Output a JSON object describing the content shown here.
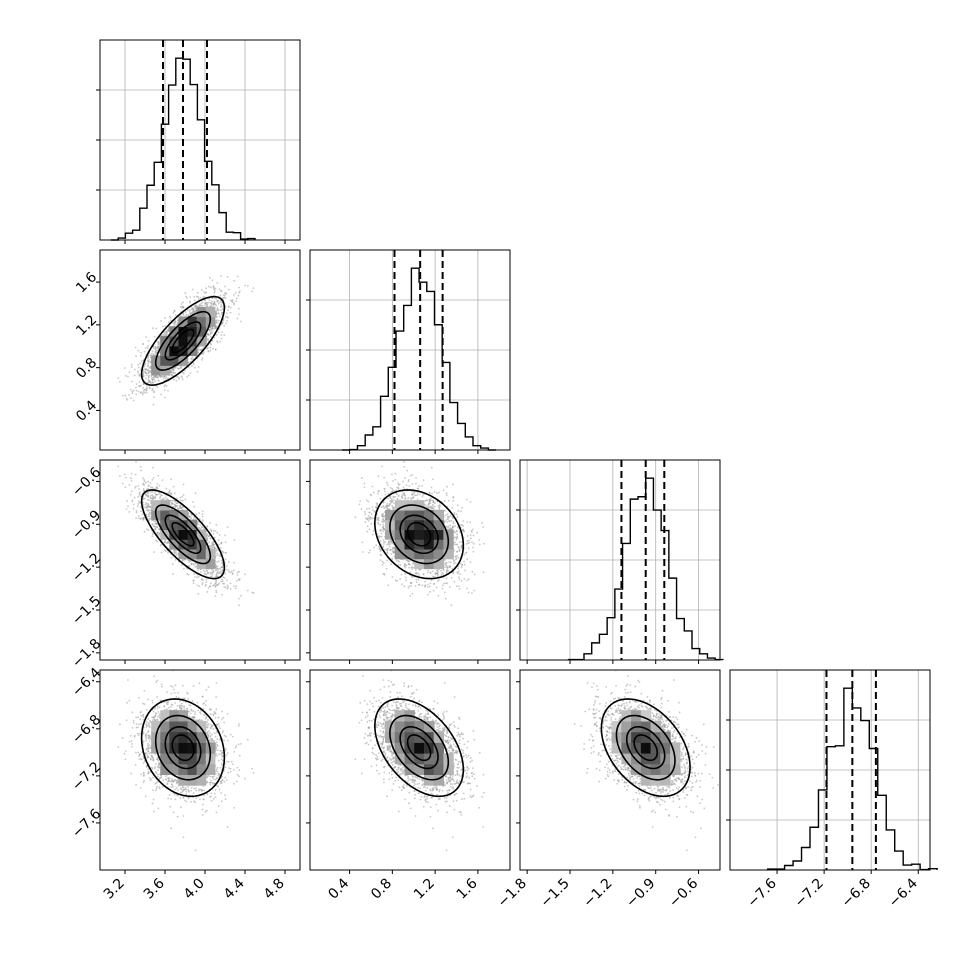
{
  "chart_data": {
    "type": "corner",
    "n_params": 4,
    "axis_labels": [
      "",
      "",
      "",
      ""
    ],
    "parameters": [
      {
        "mean": 3.78,
        "std": 0.2,
        "range": [
          2.95,
          4.95
        ],
        "ticks": [
          3.2,
          3.6,
          4.0,
          4.4,
          4.8
        ],
        "tick_labels": [
          "3.2",
          "3.6",
          "4.0",
          "4.4",
          "4.8"
        ],
        "quantiles": [
          3.58,
          3.78,
          4.02
        ]
      },
      {
        "mean": 1.05,
        "std": 0.2,
        "range": [
          0.03,
          1.9
        ],
        "ticks": [
          0.4,
          0.8,
          1.2,
          1.6
        ],
        "tick_labels": [
          "0.4",
          "0.8",
          "1.2",
          "1.6"
        ],
        "quantiles": [
          0.82,
          1.06,
          1.27
        ]
      },
      {
        "mean": -0.97,
        "std": 0.15,
        "range": [
          -1.85,
          -0.45
        ],
        "ticks": [
          -1.8,
          -1.5,
          -1.2,
          -0.9,
          -0.6
        ],
        "tick_labels": [
          "−1.8",
          "−1.5",
          "−1.2",
          "−0.9",
          "−0.6"
        ],
        "quantiles": [
          -1.14,
          -0.97,
          -0.84
        ]
      },
      {
        "mean": -6.96,
        "std": 0.2,
        "range": [
          -8.0,
          -6.3
        ],
        "ticks": [
          -7.6,
          -7.2,
          -6.8,
          -6.4
        ],
        "tick_labels": [
          "−7.6",
          "−7.2",
          "−6.8",
          "−6.4"
        ],
        "quantiles": [
          -7.18,
          -6.96,
          -6.76
        ]
      }
    ],
    "correlations": [
      {
        "i": 1,
        "j": 0,
        "rho": 0.75
      },
      {
        "i": 2,
        "j": 0,
        "rho": -0.75
      },
      {
        "i": 2,
        "j": 1,
        "rho": -0.25
      },
      {
        "i": 3,
        "j": 0,
        "rho": -0.2
      },
      {
        "i": 3,
        "j": 1,
        "rho": -0.45
      },
      {
        "i": 3,
        "j": 2,
        "rho": -0.4
      }
    ],
    "contour_levels_sigma": [
      0.5,
      1.0,
      1.5,
      2.0
    ],
    "histogram_bins": 20,
    "grid": true,
    "colors": {
      "scatter": "#9a9a9a",
      "line": "#000000",
      "density": "#000000",
      "grid": "#b0b0b0"
    }
  }
}
